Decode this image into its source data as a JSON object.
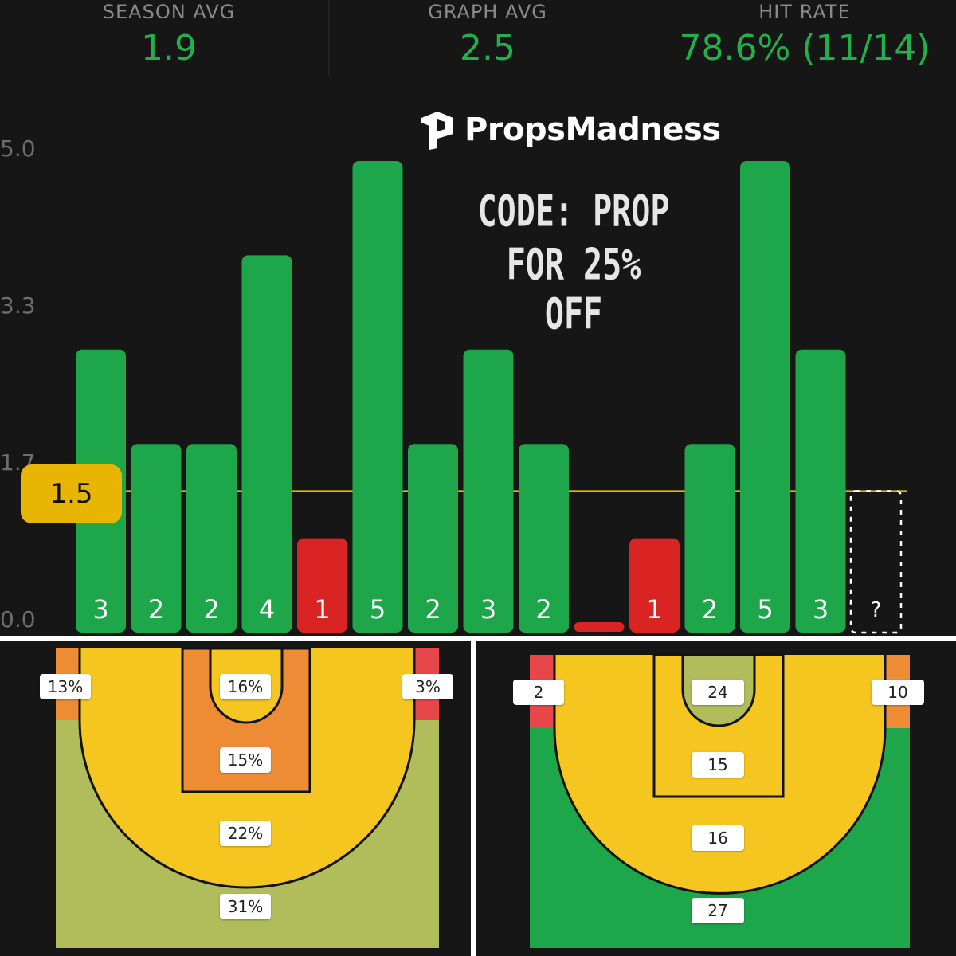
{
  "stats": [
    {
      "label": "SEASON AVG",
      "value": "1.9"
    },
    {
      "label": "GRAPH AVG",
      "value": "2.5"
    },
    {
      "label": "HIT RATE",
      "value": "78.6% (11/14)"
    }
  ],
  "brand": {
    "name": "PropsMadness",
    "logo_icon": "propsmadness-logo-icon"
  },
  "promo": {
    "line1": "CODE: PROP",
    "line2": "FOR 25% OFF"
  },
  "colors": {
    "hit": "#1ea64a",
    "miss": "#da2323",
    "line": "#e8b602",
    "accent_text": "#21b04a"
  },
  "chart_data": {
    "type": "bar",
    "y_ticks": [
      "5.0",
      "3.3",
      "1.7",
      "0.0"
    ],
    "ylim": [
      0,
      5
    ],
    "prop_line": 1.5,
    "prop_line_label": "1.5",
    "values": [
      3,
      2,
      2,
      4,
      1,
      5,
      2,
      3,
      2,
      0,
      1,
      2,
      5,
      3
    ],
    "labels": [
      "3",
      "2",
      "2",
      "4",
      "1",
      "5",
      "2",
      "3",
      "2",
      "",
      "1",
      "2",
      "5",
      "3"
    ],
    "upcoming_label": "?"
  },
  "courts": [
    {
      "name": "percentages",
      "zones": {
        "left_corner": {
          "label": "13%",
          "color": "#ee8c35"
        },
        "right_corner": {
          "label": "3%",
          "color": "#e8474a"
        },
        "restricted": {
          "label": "16%",
          "color": "#f5c520"
        },
        "paint": {
          "label": "15%",
          "color": "#ee8c35"
        },
        "midrange": {
          "label": "22%",
          "color": "#f5c520"
        },
        "above_break": {
          "label": "31%",
          "color": "#b0bd5a"
        }
      }
    },
    {
      "name": "counts",
      "zones": {
        "left_corner": {
          "label": "2",
          "color": "#e8474a"
        },
        "right_corner": {
          "label": "10",
          "color": "#ee8c35"
        },
        "restricted": {
          "label": "24",
          "color": "#b0bd5a"
        },
        "paint": {
          "label": "15",
          "color": "#f5c520"
        },
        "midrange": {
          "label": "16",
          "color": "#f5c520"
        },
        "above_break": {
          "label": "27",
          "color": "#1ea64a"
        }
      }
    }
  ]
}
